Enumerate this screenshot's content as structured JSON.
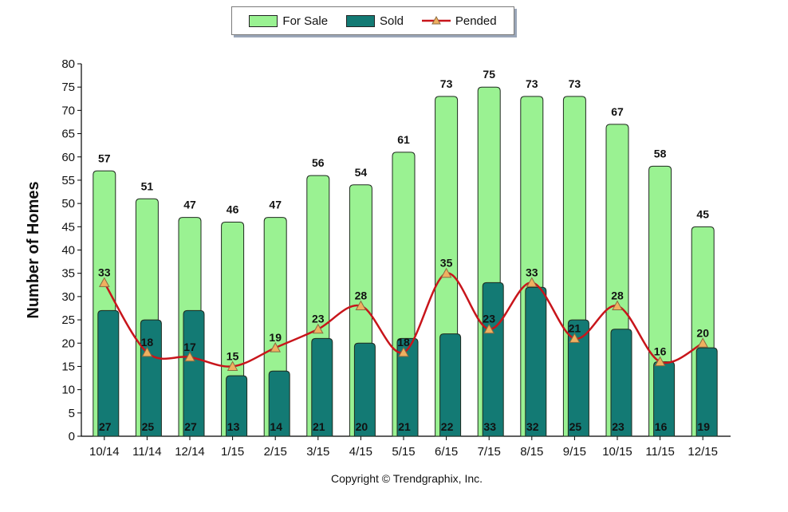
{
  "legend": {
    "for_sale": "For Sale",
    "sold": "Sold",
    "pended": "Pended"
  },
  "copyright": "Copyright © Trendgraphix, Inc.",
  "colors": {
    "for_sale": "#9af292",
    "sold": "#137a74",
    "pended": "#c8151b",
    "marker": "#f0b060"
  },
  "chart_data": {
    "type": "bar",
    "title": "",
    "xlabel": "",
    "ylabel": "Number of Homes",
    "ylim": [
      0,
      80
    ],
    "ytick_step": 5,
    "grid": false,
    "legend_position": "top-center",
    "categories": [
      "10/14",
      "11/14",
      "12/14",
      "1/15",
      "2/15",
      "3/15",
      "4/15",
      "5/15",
      "6/15",
      "7/15",
      "8/15",
      "9/15",
      "10/15",
      "11/15",
      "12/15"
    ],
    "series": [
      {
        "name": "For Sale",
        "type": "bar",
        "values": [
          57,
          51,
          47,
          46,
          47,
          56,
          54,
          61,
          73,
          75,
          73,
          73,
          67,
          58,
          45
        ]
      },
      {
        "name": "Sold",
        "type": "bar",
        "values": [
          27,
          25,
          27,
          13,
          14,
          21,
          20,
          21,
          22,
          33,
          32,
          25,
          23,
          16,
          19
        ]
      },
      {
        "name": "Pended",
        "type": "line",
        "values": [
          33,
          18,
          17,
          15,
          19,
          23,
          28,
          18,
          35,
          23,
          33,
          21,
          28,
          16,
          20
        ]
      }
    ]
  }
}
